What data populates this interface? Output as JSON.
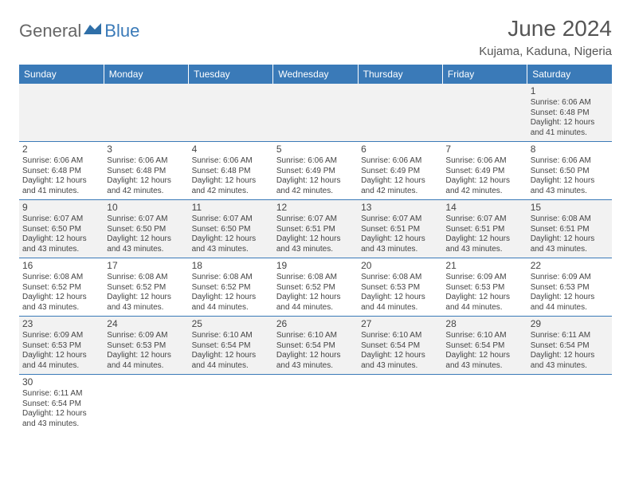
{
  "logo": {
    "text1": "General",
    "text2": "Blue"
  },
  "title": "June 2024",
  "location": "Kujama, Kaduna, Nigeria",
  "colors": {
    "header_bg": "#3a7ab8",
    "header_text": "#ffffff",
    "alt_row_bg": "#f2f2f2",
    "row_bg": "#ffffff",
    "border": "#3a7ab8",
    "text": "#444444",
    "logo_gray": "#666666",
    "logo_blue": "#3a7ab8"
  },
  "typography": {
    "title_fontsize": 28,
    "location_fontsize": 15,
    "day_header_fontsize": 12,
    "cell_fontsize": 10,
    "day_num_fontsize": 12
  },
  "day_headers": [
    "Sunday",
    "Monday",
    "Tuesday",
    "Wednesday",
    "Thursday",
    "Friday",
    "Saturday"
  ],
  "weeks": [
    [
      null,
      null,
      null,
      null,
      null,
      null,
      {
        "d": "1",
        "sr": "Sunrise: 6:06 AM",
        "ss": "Sunset: 6:48 PM",
        "dl1": "Daylight: 12 hours",
        "dl2": "and 41 minutes."
      }
    ],
    [
      {
        "d": "2",
        "sr": "Sunrise: 6:06 AM",
        "ss": "Sunset: 6:48 PM",
        "dl1": "Daylight: 12 hours",
        "dl2": "and 41 minutes."
      },
      {
        "d": "3",
        "sr": "Sunrise: 6:06 AM",
        "ss": "Sunset: 6:48 PM",
        "dl1": "Daylight: 12 hours",
        "dl2": "and 42 minutes."
      },
      {
        "d": "4",
        "sr": "Sunrise: 6:06 AM",
        "ss": "Sunset: 6:48 PM",
        "dl1": "Daylight: 12 hours",
        "dl2": "and 42 minutes."
      },
      {
        "d": "5",
        "sr": "Sunrise: 6:06 AM",
        "ss": "Sunset: 6:49 PM",
        "dl1": "Daylight: 12 hours",
        "dl2": "and 42 minutes."
      },
      {
        "d": "6",
        "sr": "Sunrise: 6:06 AM",
        "ss": "Sunset: 6:49 PM",
        "dl1": "Daylight: 12 hours",
        "dl2": "and 42 minutes."
      },
      {
        "d": "7",
        "sr": "Sunrise: 6:06 AM",
        "ss": "Sunset: 6:49 PM",
        "dl1": "Daylight: 12 hours",
        "dl2": "and 42 minutes."
      },
      {
        "d": "8",
        "sr": "Sunrise: 6:06 AM",
        "ss": "Sunset: 6:50 PM",
        "dl1": "Daylight: 12 hours",
        "dl2": "and 43 minutes."
      }
    ],
    [
      {
        "d": "9",
        "sr": "Sunrise: 6:07 AM",
        "ss": "Sunset: 6:50 PM",
        "dl1": "Daylight: 12 hours",
        "dl2": "and 43 minutes."
      },
      {
        "d": "10",
        "sr": "Sunrise: 6:07 AM",
        "ss": "Sunset: 6:50 PM",
        "dl1": "Daylight: 12 hours",
        "dl2": "and 43 minutes."
      },
      {
        "d": "11",
        "sr": "Sunrise: 6:07 AM",
        "ss": "Sunset: 6:50 PM",
        "dl1": "Daylight: 12 hours",
        "dl2": "and 43 minutes."
      },
      {
        "d": "12",
        "sr": "Sunrise: 6:07 AM",
        "ss": "Sunset: 6:51 PM",
        "dl1": "Daylight: 12 hours",
        "dl2": "and 43 minutes."
      },
      {
        "d": "13",
        "sr": "Sunrise: 6:07 AM",
        "ss": "Sunset: 6:51 PM",
        "dl1": "Daylight: 12 hours",
        "dl2": "and 43 minutes."
      },
      {
        "d": "14",
        "sr": "Sunrise: 6:07 AM",
        "ss": "Sunset: 6:51 PM",
        "dl1": "Daylight: 12 hours",
        "dl2": "and 43 minutes."
      },
      {
        "d": "15",
        "sr": "Sunrise: 6:08 AM",
        "ss": "Sunset: 6:51 PM",
        "dl1": "Daylight: 12 hours",
        "dl2": "and 43 minutes."
      }
    ],
    [
      {
        "d": "16",
        "sr": "Sunrise: 6:08 AM",
        "ss": "Sunset: 6:52 PM",
        "dl1": "Daylight: 12 hours",
        "dl2": "and 43 minutes."
      },
      {
        "d": "17",
        "sr": "Sunrise: 6:08 AM",
        "ss": "Sunset: 6:52 PM",
        "dl1": "Daylight: 12 hours",
        "dl2": "and 43 minutes."
      },
      {
        "d": "18",
        "sr": "Sunrise: 6:08 AM",
        "ss": "Sunset: 6:52 PM",
        "dl1": "Daylight: 12 hours",
        "dl2": "and 44 minutes."
      },
      {
        "d": "19",
        "sr": "Sunrise: 6:08 AM",
        "ss": "Sunset: 6:52 PM",
        "dl1": "Daylight: 12 hours",
        "dl2": "and 44 minutes."
      },
      {
        "d": "20",
        "sr": "Sunrise: 6:08 AM",
        "ss": "Sunset: 6:53 PM",
        "dl1": "Daylight: 12 hours",
        "dl2": "and 44 minutes."
      },
      {
        "d": "21",
        "sr": "Sunrise: 6:09 AM",
        "ss": "Sunset: 6:53 PM",
        "dl1": "Daylight: 12 hours",
        "dl2": "and 44 minutes."
      },
      {
        "d": "22",
        "sr": "Sunrise: 6:09 AM",
        "ss": "Sunset: 6:53 PM",
        "dl1": "Daylight: 12 hours",
        "dl2": "and 44 minutes."
      }
    ],
    [
      {
        "d": "23",
        "sr": "Sunrise: 6:09 AM",
        "ss": "Sunset: 6:53 PM",
        "dl1": "Daylight: 12 hours",
        "dl2": "and 44 minutes."
      },
      {
        "d": "24",
        "sr": "Sunrise: 6:09 AM",
        "ss": "Sunset: 6:53 PM",
        "dl1": "Daylight: 12 hours",
        "dl2": "and 44 minutes."
      },
      {
        "d": "25",
        "sr": "Sunrise: 6:10 AM",
        "ss": "Sunset: 6:54 PM",
        "dl1": "Daylight: 12 hours",
        "dl2": "and 44 minutes."
      },
      {
        "d": "26",
        "sr": "Sunrise: 6:10 AM",
        "ss": "Sunset: 6:54 PM",
        "dl1": "Daylight: 12 hours",
        "dl2": "and 43 minutes."
      },
      {
        "d": "27",
        "sr": "Sunrise: 6:10 AM",
        "ss": "Sunset: 6:54 PM",
        "dl1": "Daylight: 12 hours",
        "dl2": "and 43 minutes."
      },
      {
        "d": "28",
        "sr": "Sunrise: 6:10 AM",
        "ss": "Sunset: 6:54 PM",
        "dl1": "Daylight: 12 hours",
        "dl2": "and 43 minutes."
      },
      {
        "d": "29",
        "sr": "Sunrise: 6:11 AM",
        "ss": "Sunset: 6:54 PM",
        "dl1": "Daylight: 12 hours",
        "dl2": "and 43 minutes."
      }
    ],
    [
      {
        "d": "30",
        "sr": "Sunrise: 6:11 AM",
        "ss": "Sunset: 6:54 PM",
        "dl1": "Daylight: 12 hours",
        "dl2": "and 43 minutes."
      },
      null,
      null,
      null,
      null,
      null,
      null
    ]
  ]
}
